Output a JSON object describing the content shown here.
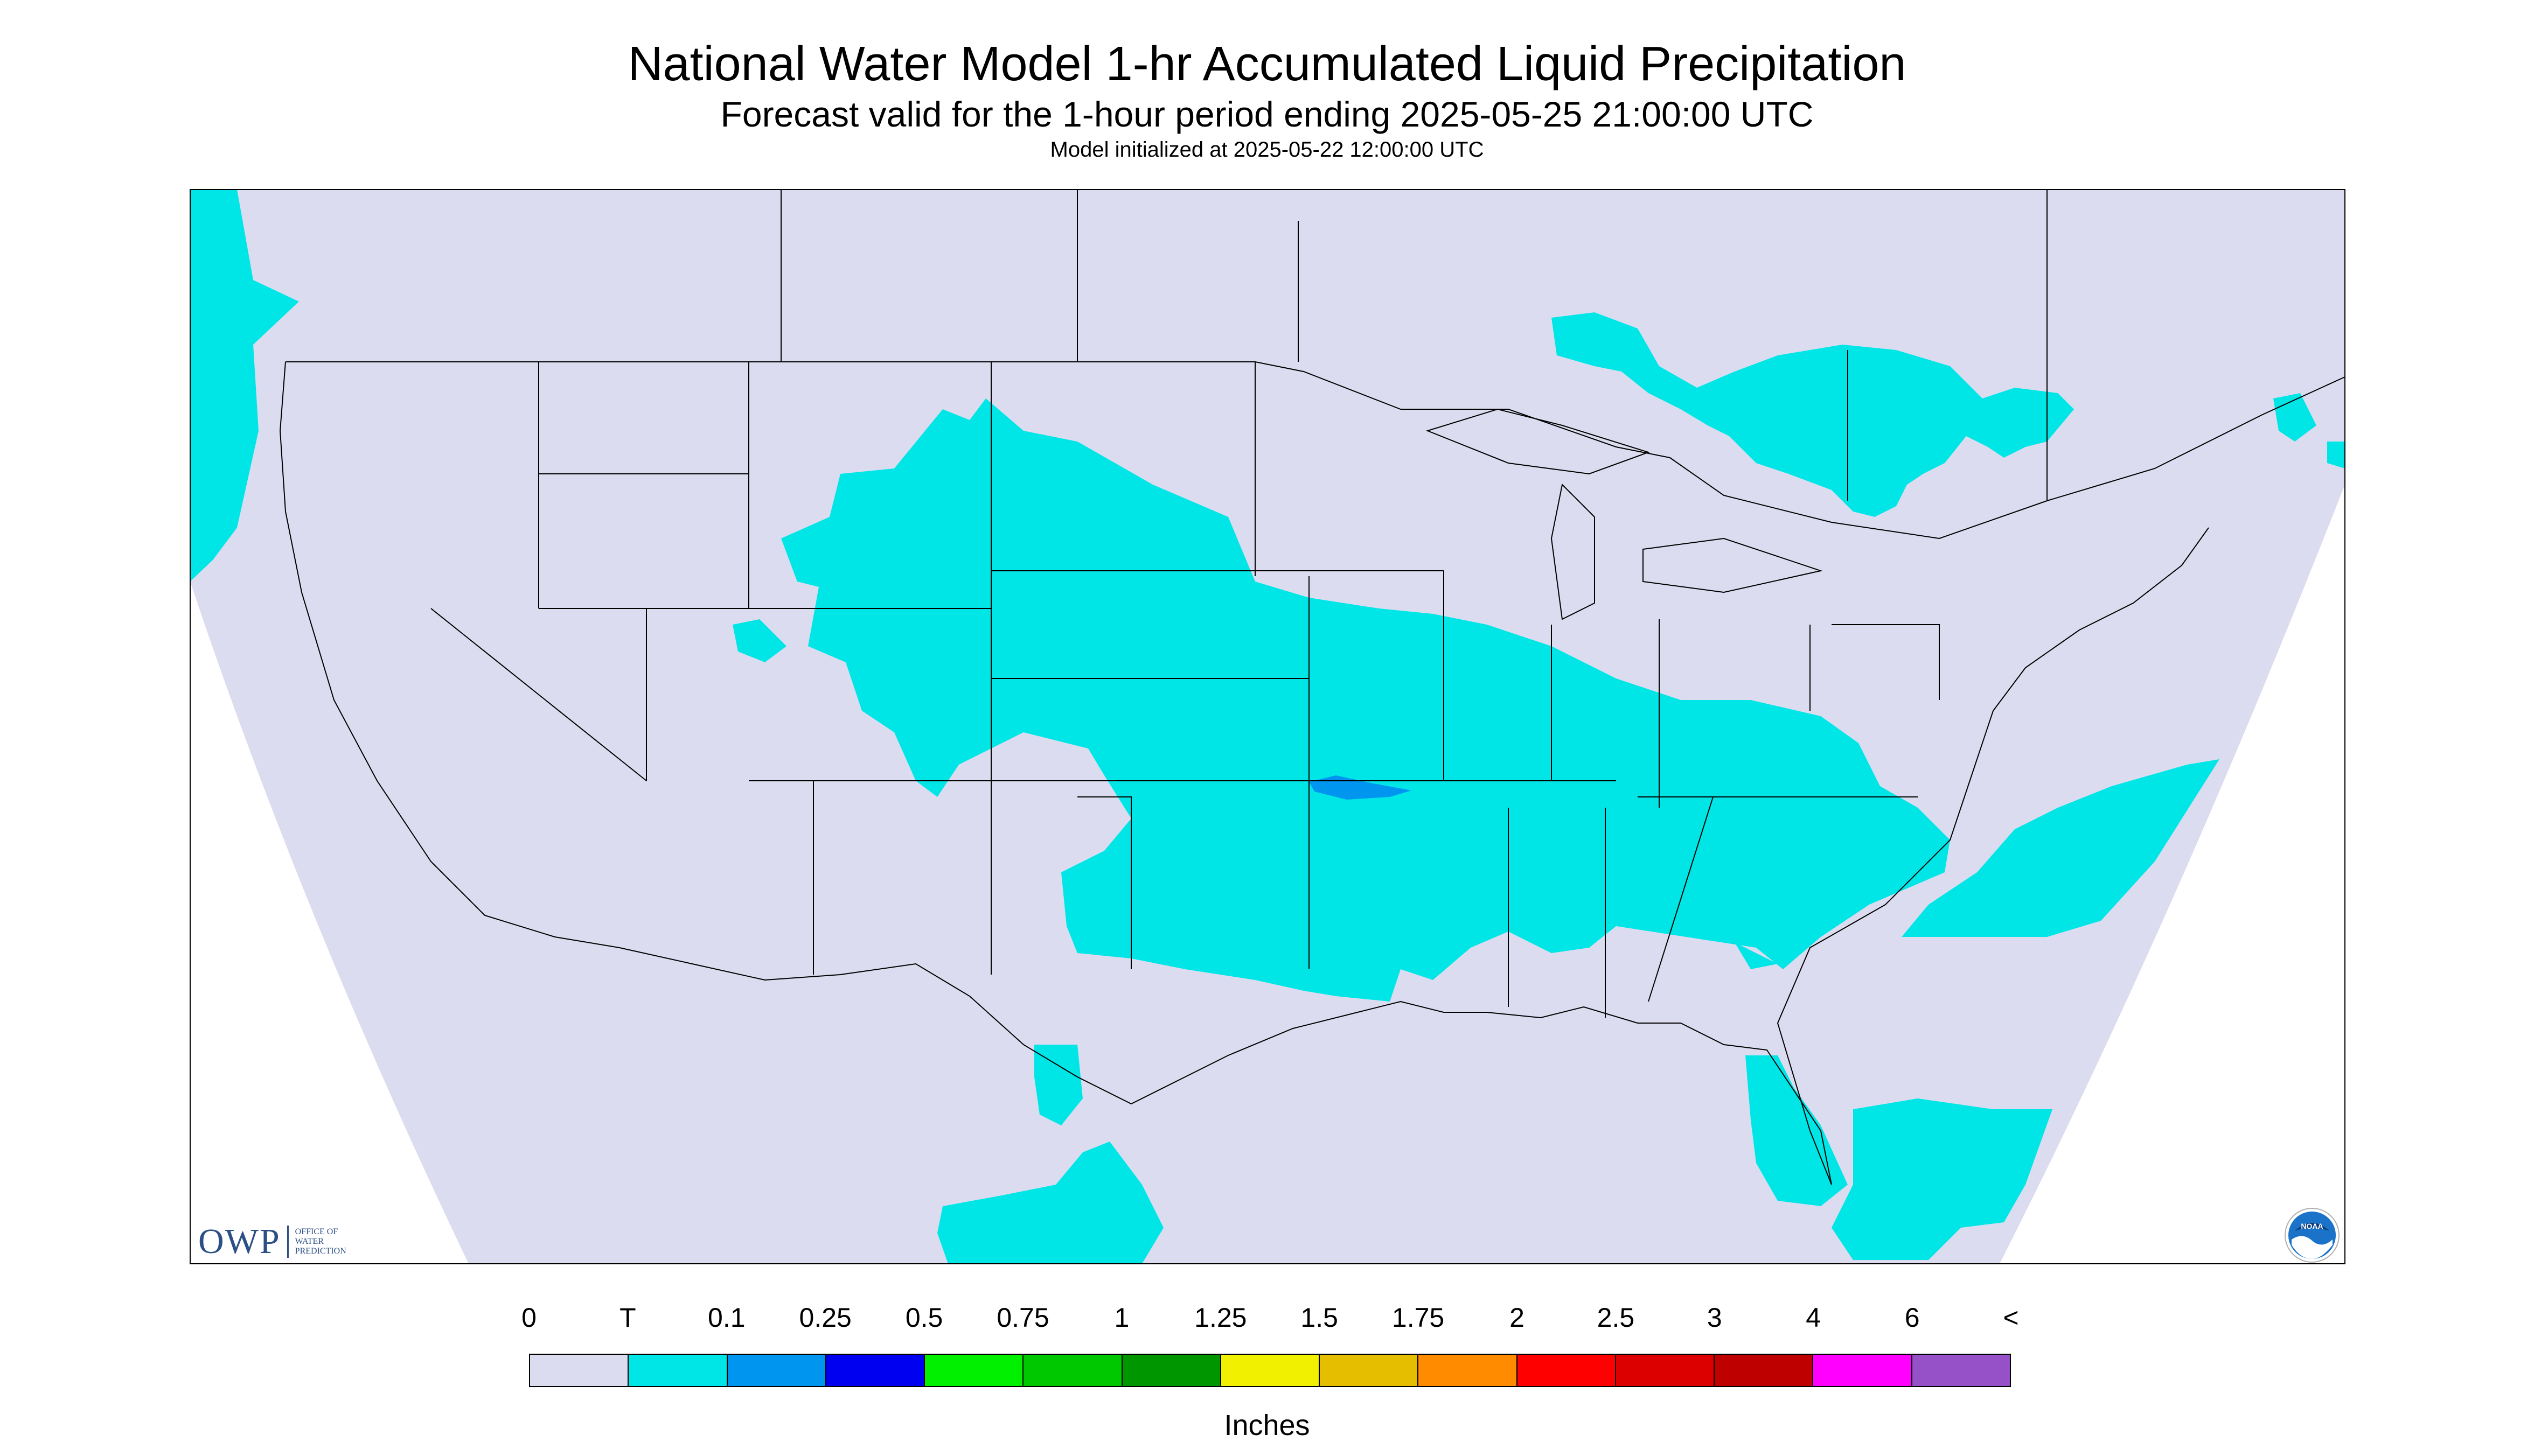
{
  "header": {
    "title": "National Water Model 1-hr Accumulated Liquid Precipitation",
    "subtitle": "Forecast valid for the 1-hour period ending 2025-05-25 21:00:00 UTC",
    "init": "Model initialized at 2025-05-22 12:00:00 UTC"
  },
  "legend": {
    "tick_labels": [
      "0",
      "T",
      "0.1",
      "0.25",
      "0.5",
      "0.75",
      "1",
      "1.25",
      "1.5",
      "1.75",
      "2",
      "2.5",
      "3",
      "4",
      "6",
      "<"
    ],
    "colors": [
      "#dcdcf0",
      "#00e6e6",
      "#0096f0",
      "#0000f0",
      "#00f000",
      "#00c800",
      "#009600",
      "#f0f000",
      "#e6be00",
      "#ff8c00",
      "#ff0000",
      "#dc0000",
      "#be0000",
      "#ff00ff",
      "#9650c8"
    ],
    "units": "Inches"
  },
  "map": {
    "background_color": "#dcdcf0",
    "outside_color": "#ffffff",
    "precip_trace_color": "#00e6e6",
    "precip_light_color": "#0096f0",
    "boundary_color": "#000000",
    "regions_with_precip": [
      "Pacific Northwest coast",
      "Great Plains",
      "Mississippi Valley",
      "Southeast US",
      "Northern Great Lakes / Ontario",
      "Atlantic offshore",
      "South Florida / Caribbean",
      "Southern Mexico"
    ],
    "light_rain_area": "Kansas-Oklahoma border"
  },
  "logos": {
    "owp_mark": "OWP",
    "owp_line1": "OFFICE OF",
    "owp_line2": "WATER",
    "owp_line3": "PREDICTION",
    "noaa_label": "NOAA",
    "owp_icon": "owp-logo-icon",
    "noaa_icon": "noaa-logo-icon"
  }
}
